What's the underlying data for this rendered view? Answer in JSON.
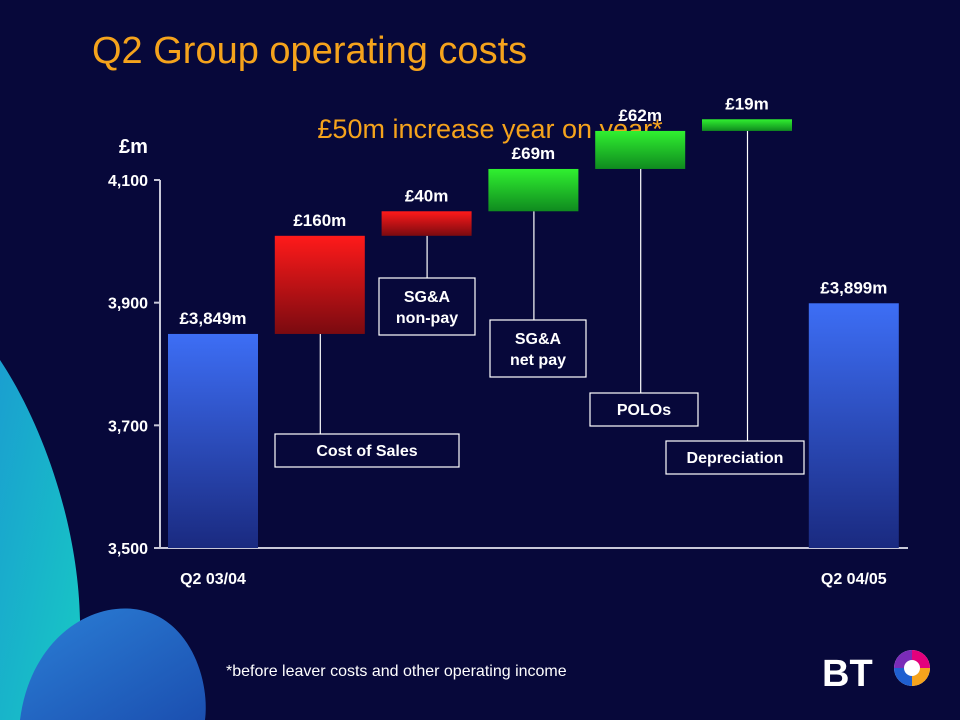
{
  "slide": {
    "title": "Q2 Group operating costs",
    "subtitle": "£50m increase year on year*",
    "unit": "£m",
    "footnote": "*before leaver costs and other operating income",
    "logo_text": "BT"
  },
  "chart_data": {
    "type": "waterfall",
    "title": "Q2 Group operating costs",
    "subtitle": "£50m increase year on year*",
    "ylabel": "£m",
    "ylim": [
      3500,
      4100
    ],
    "yticks": [
      3500,
      3700,
      3900,
      4100
    ],
    "ytick_labels": [
      "3,500",
      "3,700",
      "3,900",
      "4,100"
    ],
    "colors": {
      "total": "#3b67f0",
      "increase_red": "#e8191c",
      "increase_green": "#22cc22"
    },
    "bars": [
      {
        "kind": "total",
        "category": "Q2 03/04",
        "value": 3849,
        "label": "£3,849m"
      },
      {
        "kind": "delta",
        "category": "Cost of Sales",
        "value": 160,
        "label": "£160m",
        "color": "red"
      },
      {
        "kind": "delta",
        "category": "SG&A non-pay",
        "value": 40,
        "label": "£40m",
        "color": "red"
      },
      {
        "kind": "delta",
        "category": "SG&A net pay",
        "value": 69,
        "label": "£69m",
        "color": "green"
      },
      {
        "kind": "delta",
        "category": "POLOs",
        "value": 62,
        "label": "£62m",
        "color": "green"
      },
      {
        "kind": "delta",
        "category": "Depreciation",
        "value": 19,
        "label": "£19m",
        "color": "green"
      },
      {
        "kind": "total",
        "category": "Q2 04/05",
        "value": 3899,
        "label": "£3,899m"
      }
    ]
  }
}
